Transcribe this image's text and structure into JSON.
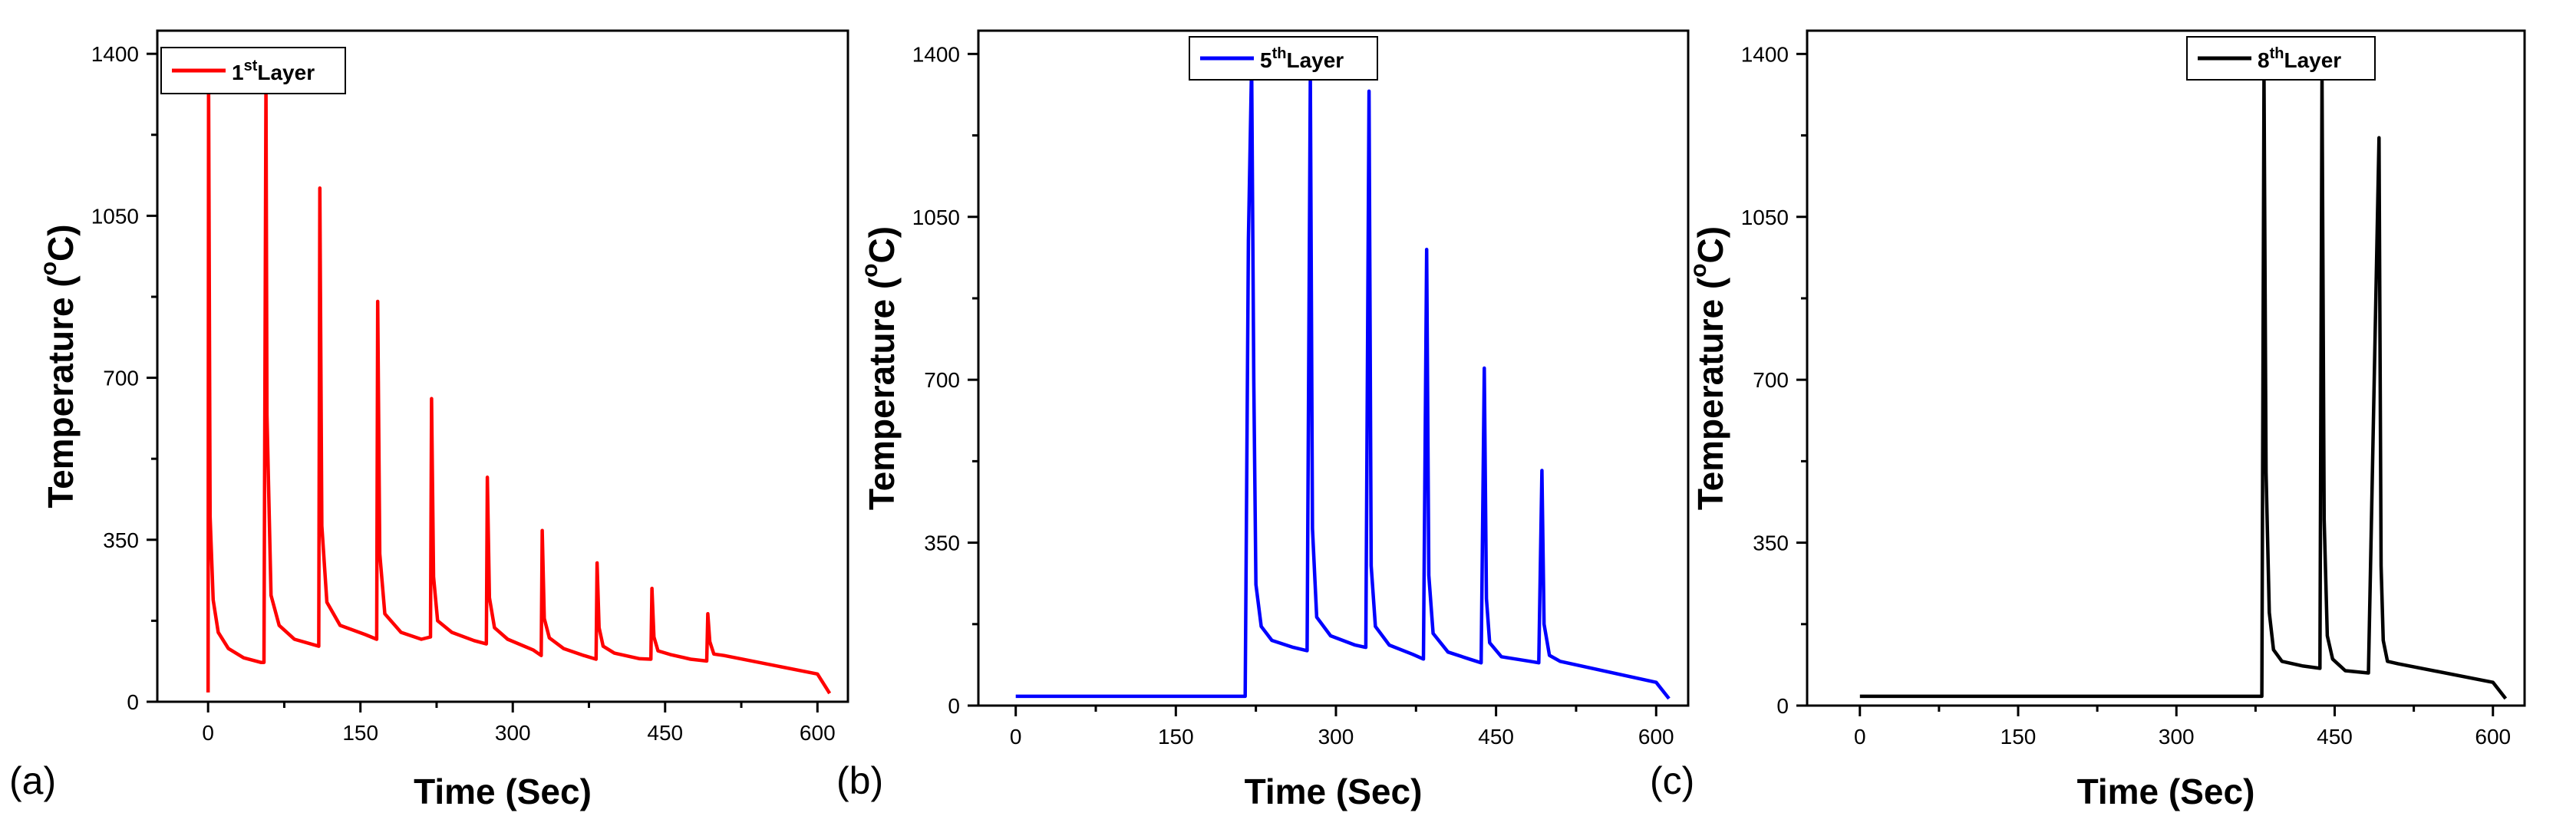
{
  "figure": {
    "panels": [
      {
        "label": "(a)"
      },
      {
        "label": "(b)"
      },
      {
        "label": "(c)"
      }
    ]
  },
  "chart_data": [
    {
      "type": "line",
      "panel_label": "(a)",
      "xlabel": "Time (Sec)",
      "ylabel": "Temperature (",
      "ylabel_unit": "C)",
      "ylabel_degree": "o",
      "xlim": [
        -50,
        630
      ],
      "ylim": [
        0,
        1450
      ],
      "xticks": [
        "0",
        "150",
        "300",
        "450",
        "600"
      ],
      "xtick_values": [
        0,
        150,
        300,
        450,
        600
      ],
      "yticks": [
        "0",
        "350",
        "700",
        "1050",
        "1400"
      ],
      "ytick_values": [
        0,
        350,
        700,
        1050,
        1400
      ],
      "legend": {
        "num": "1",
        "sup": "st",
        "text": "Layer",
        "placement": "top-left"
      },
      "series": [
        {
          "name": "1st Layer",
          "color": "#ff0000",
          "x": [
            0,
            0.5,
            2,
            5,
            10,
            20,
            35,
            52,
            55,
            57,
            58,
            62,
            70,
            85,
            109,
            110,
            112,
            117,
            130,
            155,
            166,
            167,
            169,
            174,
            190,
            210,
            219,
            220,
            222,
            226,
            240,
            262,
            274,
            275,
            277,
            282,
            295,
            320,
            328,
            329,
            331,
            336,
            350,
            370,
            382,
            383,
            385,
            389,
            400,
            425,
            436,
            437,
            439,
            443,
            455,
            475,
            491,
            492,
            494,
            498,
            508,
            600,
            612
          ],
          "y": [
            20,
            1340,
            400,
            220,
            150,
            115,
            95,
            85,
            85,
            1335,
            620,
            230,
            165,
            135,
            120,
            1110,
            380,
            215,
            165,
            145,
            135,
            865,
            320,
            190,
            150,
            135,
            140,
            655,
            270,
            175,
            150,
            132,
            125,
            485,
            225,
            160,
            135,
            112,
            100,
            370,
            180,
            138,
            115,
            100,
            92,
            300,
            160,
            120,
            105,
            93,
            92,
            245,
            140,
            110,
            102,
            92,
            88,
            190,
            130,
            103,
            100,
            60,
            18
          ]
        }
      ]
    },
    {
      "type": "line",
      "panel_label": "(b)",
      "xlabel": "Time (Sec)",
      "ylabel": "Temperature (",
      "ylabel_unit": "C)",
      "ylabel_degree": "o",
      "xlim": [
        -35,
        630
      ],
      "ylim": [
        0,
        1450
      ],
      "xticks": [
        "0",
        "150",
        "300",
        "450",
        "600"
      ],
      "xtick_values": [
        0,
        150,
        300,
        450,
        600
      ],
      "yticks": [
        "0",
        "350",
        "700",
        "1050",
        "1400"
      ],
      "ytick_values": [
        0,
        350,
        700,
        1050,
        1400
      ],
      "legend": {
        "num": "5",
        "sup": "th",
        "text": "Layer",
        "placement": "top-center"
      },
      "series": [
        {
          "name": "5th Layer",
          "color": "#0000ff",
          "x": [
            0,
            215,
            218,
            221,
            223,
            225,
            230,
            240,
            260,
            273,
            276,
            278,
            282,
            295,
            318,
            328,
            331,
            333,
            337,
            350,
            372,
            382,
            385,
            387,
            391,
            405,
            425,
            436,
            439,
            441,
            444,
            455,
            482,
            490,
            493,
            495,
            500,
            510,
            600,
            612
          ],
          "y": [
            20,
            20,
            1000,
            1380,
            700,
            260,
            170,
            140,
            125,
            118,
            1355,
            380,
            190,
            150,
            130,
            125,
            1320,
            300,
            170,
            130,
            110,
            100,
            980,
            280,
            155,
            115,
            100,
            92,
            725,
            230,
            135,
            105,
            95,
            92,
            505,
            175,
            108,
            95,
            50,
            15
          ]
        }
      ]
    },
    {
      "type": "line",
      "panel_label": "(c)",
      "xlabel": "Time (Sec)",
      "ylabel": "Temperature (",
      "ylabel_unit": "C)",
      "ylabel_degree": "o",
      "xlim": [
        -50,
        630
      ],
      "ylim": [
        0,
        1450
      ],
      "xticks": [
        "0",
        "150",
        "300",
        "450",
        "600"
      ],
      "xtick_values": [
        0,
        150,
        300,
        450,
        600
      ],
      "yticks": [
        "0",
        "350",
        "700",
        "1050",
        "1400"
      ],
      "ytick_values": [
        0,
        350,
        700,
        1050,
        1400
      ],
      "legend": {
        "num": "8",
        "sup": "th",
        "text": "Layer",
        "placement": "top-right"
      },
      "series": [
        {
          "name": "8th Layer",
          "color": "#000000",
          "x": [
            0,
            381,
            383,
            385,
            388,
            392,
            400,
            420,
            436,
            438,
            440,
            443,
            448,
            460,
            482,
            492,
            494,
            496,
            500,
            510,
            600,
            612
          ],
          "y": [
            20,
            20,
            1350,
            500,
            200,
            120,
            95,
            85,
            80,
            1350,
            400,
            150,
            100,
            75,
            70,
            1220,
            300,
            140,
            95,
            90,
            50,
            15
          ]
        }
      ]
    }
  ]
}
